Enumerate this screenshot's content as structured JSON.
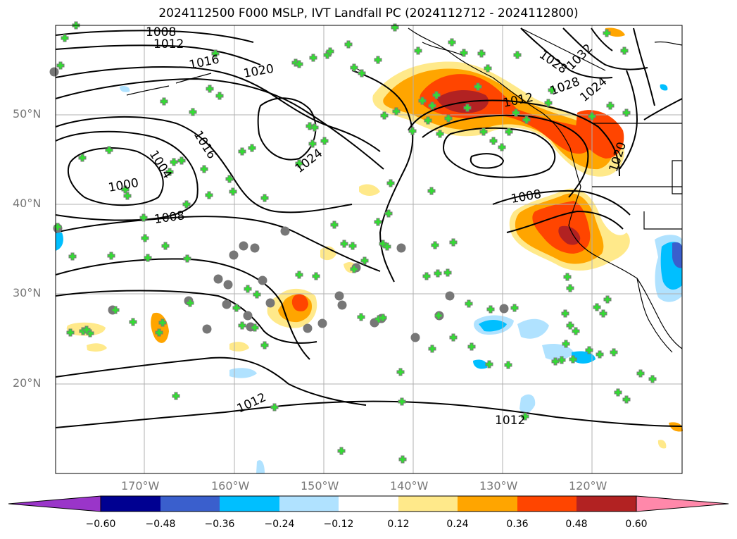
{
  "title": "2024112500 F000 MSLP, IVT Landfall PC (2024112712 - 2024112800)",
  "lat_ticks": [
    "50°N",
    "40°N",
    "30°N",
    "20°N"
  ],
  "lon_ticks": [
    "170°W",
    "160°W",
    "150°W",
    "140°W",
    "130°W",
    "120°W"
  ],
  "isobar_labels": [
    "1008",
    "1012",
    "1016",
    "1020",
    "1024",
    "1000",
    "1004",
    "1008",
    "1016",
    "1012",
    "1012",
    "1008",
    "1012",
    "1020",
    "1024",
    "1028",
    "1032",
    "1028"
  ],
  "colorbar": {
    "tick_labels": [
      "−0.60",
      "−0.48",
      "−0.36",
      "−0.24",
      "−0.12",
      "0.12",
      "0.24",
      "0.36",
      "0.48",
      "0.60"
    ],
    "colors": [
      "#9a35c9",
      "#000091",
      "#3a5fcd",
      "#00bfff",
      "#b0e2ff",
      "#ffffff",
      "#ffe98a",
      "#ffa500",
      "#ff4500",
      "#b22222",
      "#ff88aa"
    ]
  },
  "colors": {
    "isobar": "#000000",
    "coast": "#000000",
    "grid": "#b0b0b0",
    "marker_fill": "#33dd33",
    "marker_edge": "#777777"
  }
}
